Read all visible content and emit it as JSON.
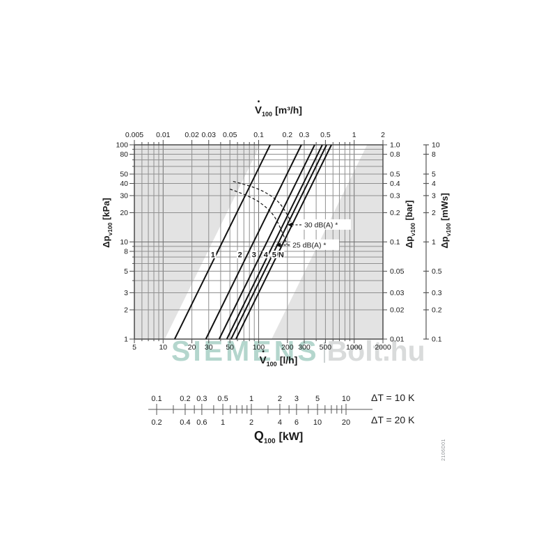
{
  "watermark": {
    "brand": "SIEMENS",
    "suffix": "Bolt.hu",
    "brand_color": "#b4d6cd",
    "suffix_color": "#d9dbdb",
    "divider_color": "#ccd2d2"
  },
  "doc_number": "2106D01",
  "titles": {
    "flow_top": {
      "dot": "•",
      "symbol": "V",
      "sub": "100",
      "unit": "[m³/h]"
    },
    "flow_bottom": {
      "dot": "•",
      "symbol": "V",
      "sub": "100",
      "unit": "[l/h]"
    },
    "pressure_left": {
      "symbol": "Δp",
      "sub": "v100",
      "unit": "[kPa]"
    },
    "pressure_bar": {
      "symbol": "Δp",
      "sub": "v100",
      "unit": "[bar]"
    },
    "pressure_mws": {
      "symbol": "Δp",
      "sub": "v100",
      "unit": "[mWs]"
    },
    "power": {
      "symbol": "Q",
      "sub": "100",
      "unit": "[kW]"
    },
    "dt10": "ΔT = 10 K",
    "dt20": "ΔT = 20 K"
  },
  "chart_data": {
    "type": "line",
    "description": "Valve pressure-drop vs volume-flow nomogram, log-log grid, presetting curves 1-5 and N with 25/30 dB(A) noise limit curves, plus heat-output conversion ruler",
    "x_scale": "log",
    "y_scale": "log",
    "x_range_lh": [
      5,
      2000
    ],
    "y_range_kpa": [
      1,
      100
    ],
    "grid": true,
    "bottom_axis": {
      "unit": "l/h",
      "tick_values": [
        5,
        10,
        20,
        30,
        50,
        100,
        200,
        300,
        500,
        1000,
        2000
      ],
      "tick_labels": [
        "5",
        "10",
        "20",
        "30",
        "50",
        "100",
        "200",
        "300",
        "500",
        "1000",
        "2000"
      ]
    },
    "top_axis": {
      "unit": "m³/h",
      "tick_values_lh": [
        5,
        10,
        20,
        30,
        50,
        100,
        200,
        300,
        500,
        1000,
        2000
      ],
      "tick_labels": [
        "0.005",
        "0.01",
        "0.02",
        "0.03",
        "0.05",
        "0.1",
        "0.2",
        "0.3",
        "0.5",
        "1",
        "2"
      ]
    },
    "left_axis": {
      "unit": "kPa",
      "tick_values": [
        100,
        80,
        50,
        40,
        30,
        20,
        10,
        8,
        5,
        3,
        2,
        1
      ],
      "tick_labels": [
        "100",
        "80",
        "50",
        "40",
        "30",
        "20",
        "10",
        "8",
        "5",
        "3",
        "2",
        "1"
      ]
    },
    "bar_axis": {
      "unit": "bar",
      "tick_values_kpa": [
        100,
        80,
        50,
        40,
        30,
        20,
        10,
        5,
        3,
        2,
        1
      ],
      "tick_labels": [
        "1.0",
        "0.8",
        "0.5",
        "0.4",
        "0.3",
        "0.2",
        "0.1",
        "0.05",
        "0.03",
        "0.02",
        "0.01"
      ]
    },
    "mws_axis": {
      "unit": "mWs",
      "tick_values_kpa": [
        100,
        80,
        50,
        40,
        30,
        20,
        10,
        5,
        3,
        2,
        1
      ],
      "tick_labels": [
        "10",
        "8",
        "5",
        "4",
        "3",
        "2",
        "1",
        "0.5",
        "0.3",
        "0.2",
        "0.1"
      ]
    },
    "series": [
      {
        "label": "1",
        "v100_lh": 132
      },
      {
        "label": "2",
        "v100_lh": 280
      },
      {
        "label": "3",
        "v100_lh": 386
      },
      {
        "label": "4",
        "v100_lh": 464
      },
      {
        "label": "5",
        "v100_lh": 514
      },
      {
        "label": "N",
        "v100_lh": 578
      }
    ],
    "label_dp_kpa": 7.5,
    "band_v100_lh": [
      104,
      1365
    ],
    "noise_curves": [
      {
        "label": "30 dB(A) *",
        "points_lh_kpa": [
          [
            54,
            42
          ],
          [
            90,
            37
          ],
          [
            136,
            30
          ],
          [
            175,
            24
          ],
          [
            218,
            16.2
          ]
        ],
        "label_at_lh_kpa": [
          300,
          15
        ]
      },
      {
        "label": "25 dB(A) *",
        "points_lh_kpa": [
          [
            50,
            35
          ],
          [
            78,
            30
          ],
          [
            110,
            24.6
          ],
          [
            148,
            18.6
          ],
          [
            185,
            11.3
          ],
          [
            198,
            9.4
          ]
        ],
        "label_at_lh_kpa": [
          226,
          9.3
        ]
      }
    ],
    "q_scale": {
      "range_10k_kw": [
        0.1,
        10
      ],
      "tick_mantissas": [
        1,
        1.5,
        2,
        2.5,
        3,
        4,
        5,
        6,
        7,
        8,
        9
      ],
      "labels_10k": {
        "values": [
          0.1,
          0.2,
          0.3,
          0.5,
          1,
          2,
          3,
          5,
          10
        ],
        "texts": [
          "0.1",
          "0.2",
          "0.3",
          "0.5",
          "1",
          "2",
          "3",
          "5",
          "10"
        ]
      },
      "labels_20k": {
        "texts": [
          "0.2",
          "0.4",
          "0.6",
          "1",
          "2",
          "4",
          "6",
          "10",
          "20"
        ]
      }
    },
    "colors": {
      "plot_bg": "#e3e3e3",
      "band": "#ffffff",
      "grid_minor": "#8f8f8f",
      "grid_decade": "#6f6f6f",
      "plot_border": "#4b4b4b",
      "curve": "#111111",
      "text": "#1a1a1a",
      "ruler": "#555555"
    }
  }
}
